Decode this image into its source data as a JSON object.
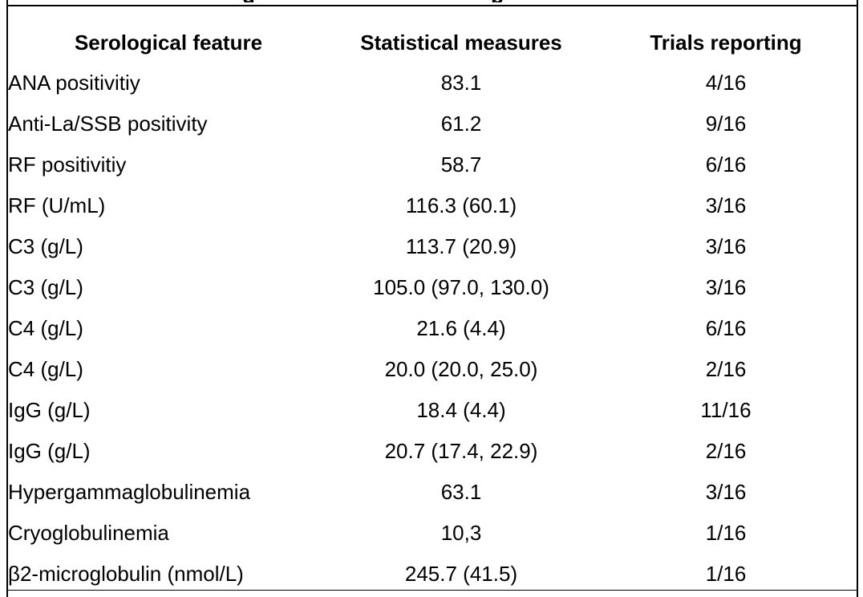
{
  "table": {
    "headers": {
      "feature": "Serological feature",
      "stats": "Statistical measures",
      "trials": "Trials reporting"
    },
    "rows": [
      {
        "feature": "ANA positivitiy",
        "stats": "83.1",
        "trials": "4/16"
      },
      {
        "feature": "Anti-La/SSB positivity",
        "stats": "61.2",
        "trials": "9/16"
      },
      {
        "feature": "RF positivitiy",
        "stats": "58.7",
        "trials": "6/16"
      },
      {
        "feature": "RF (U/mL)",
        "stats": "116.3 (60.1)",
        "trials": "3/16"
      },
      {
        "feature": "C3 (g/L)",
        "stats": "113.7 (20.9)",
        "trials": "3/16"
      },
      {
        "feature": "C3 (g/L)",
        "stats": "105.0 (97.0, 130.0)",
        "trials": "3/16"
      },
      {
        "feature": "C4 (g/L)",
        "stats": "21.6 (4.4)",
        "trials": "6/16"
      },
      {
        "feature": "C4 (g/L)",
        "stats": "20.0 (20.0, 25.0)",
        "trials": "2/16"
      },
      {
        "feature": "IgG (g/L)",
        "stats": "18.4 (4.4)",
        "trials": "11/16"
      },
      {
        "feature": "IgG (g/L)",
        "stats": "20.7 (17.4, 22.9)",
        "trials": "2/16"
      },
      {
        "feature": "Hypergammaglobulinemia",
        "stats": "63.1",
        "trials": "3/16"
      },
      {
        "feature": "Cryoglobulinemia",
        "stats": "10,3",
        "trials": "1/16"
      },
      {
        "feature": "β2-microglobulin (nmol/L)",
        "stats": "245.7 (41.5)",
        "trials": "1/16"
      }
    ]
  }
}
